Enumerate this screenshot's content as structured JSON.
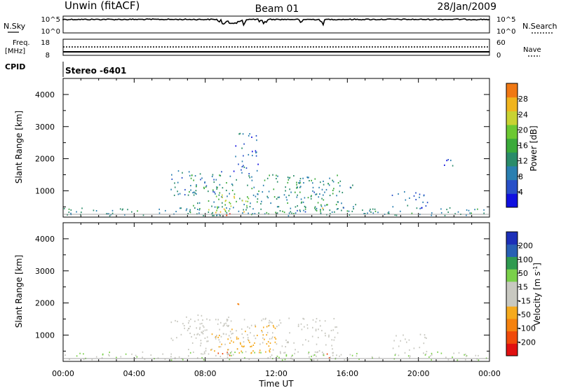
{
  "header": {
    "station": "Unwin (fitACF)",
    "beam": "Beam 01",
    "date": "28/Jan/2009"
  },
  "top_panels": {
    "nsky_label": "N.Sky",
    "nsky_ticks": [
      "10^5",
      "10^0"
    ],
    "nsearch_label": "N.Search",
    "nsearch_ticks": [
      "10^5",
      "10^0"
    ],
    "freq_label_1": "Freq.",
    "freq_label_2": "[MHz]",
    "freq_ticks": [
      "18",
      "8"
    ],
    "nave_label": "Nave",
    "nave_ticks": [
      "60",
      "0"
    ],
    "cpid_label": "CPID",
    "cpid_value": "Stereo -6401"
  },
  "x_axis": {
    "label": "Time UT",
    "ticks": [
      "00:00",
      "04:00",
      "08:00",
      "12:00",
      "16:00",
      "20:00",
      "00:00"
    ],
    "range_hours": [
      0,
      24
    ]
  },
  "colors": {
    "power": [
      "#1010e0",
      "#2850c8",
      "#2a7fb0",
      "#2a8c6a",
      "#3aaa3a",
      "#6cc832",
      "#c8d232",
      "#f0b41e",
      "#f07814",
      "#e83c0a",
      "#e00000"
    ],
    "velocity": [
      "#e01010",
      "#f04a0a",
      "#f5820f",
      "#f5aa1e",
      "#c8c8c0",
      "#c8c8c0",
      "#7ad04a",
      "#2f9a50",
      "#2860b4",
      "#1c2fb8"
    ]
  },
  "chart_data": [
    {
      "type": "heatmap",
      "name": "power_panel",
      "ylabel": "Slant Range [km]",
      "xlabel": "",
      "ylim": [
        180,
        4500
      ],
      "yticks": [
        1000,
        2000,
        3000,
        4000
      ],
      "colorbar": {
        "label": "Power [dB]",
        "range": [
          0,
          32
        ],
        "ticks": [
          "4",
          "8",
          "12",
          "16",
          "20",
          "24",
          "28"
        ]
      },
      "echo_regions": [
        {
          "t": [
            6.0,
            9.0
          ],
          "r": [
            800,
            1600
          ],
          "power": 8
        },
        {
          "t": [
            7.0,
            15.5
          ],
          "r": [
            250,
            1500
          ],
          "power": 10
        },
        {
          "t": [
            8.0,
            10.5
          ],
          "r": [
            300,
            900
          ],
          "power": 18
        },
        {
          "t": [
            8.5,
            9.5
          ],
          "r": [
            200,
            400
          ],
          "power": 28
        },
        {
          "t": [
            9.5,
            11.0
          ],
          "r": [
            1500,
            2800
          ],
          "power": 6
        },
        {
          "t": [
            13.0,
            16.5
          ],
          "r": [
            300,
            1300
          ],
          "power": 9
        },
        {
          "t": [
            14.5,
            15.0
          ],
          "r": [
            300,
            500
          ],
          "power": 22
        },
        {
          "t": [
            18.5,
            20.5
          ],
          "r": [
            400,
            1000
          ],
          "power": 6
        },
        {
          "t": [
            21.0,
            22.0
          ],
          "r": [
            1700,
            2000
          ],
          "power": 5
        }
      ]
    },
    {
      "type": "heatmap",
      "name": "velocity_panel",
      "ylabel": "Slant Range [km]",
      "xlabel": "Time UT",
      "ylim": [
        180,
        4500
      ],
      "yticks": [
        1000,
        2000,
        3000,
        4000
      ],
      "colorbar": {
        "label": "Velocity [m s^-1]",
        "range": [
          -250,
          250
        ],
        "ticks": [
          "-200",
          "-100",
          "-50",
          "-15",
          "15",
          "50",
          "100",
          "200"
        ]
      },
      "echo_regions": [
        {
          "t": [
            6.0,
            9.5
          ],
          "r": [
            800,
            1600
          ],
          "velocity": 0
        },
        {
          "t": [
            7.0,
            15.5
          ],
          "r": [
            250,
            1500
          ],
          "velocity": -5
        },
        {
          "t": [
            8.0,
            12.0
          ],
          "r": [
            400,
            1300
          ],
          "velocity": -40
        },
        {
          "t": [
            8.5,
            9.5
          ],
          "r": [
            200,
            450
          ],
          "velocity": -180
        },
        {
          "t": [
            9.8,
            10.4
          ],
          "r": [
            1800,
            2100
          ],
          "velocity": -60
        },
        {
          "t": [
            13.8,
            14.2
          ],
          "r": [
            300,
            500
          ],
          "velocity": 30
        },
        {
          "t": [
            14.3,
            15.0
          ],
          "r": [
            250,
            450
          ],
          "velocity": -140
        },
        {
          "t": [
            18.5,
            20.5
          ],
          "r": [
            400,
            1000
          ],
          "velocity": 0
        }
      ]
    }
  ]
}
